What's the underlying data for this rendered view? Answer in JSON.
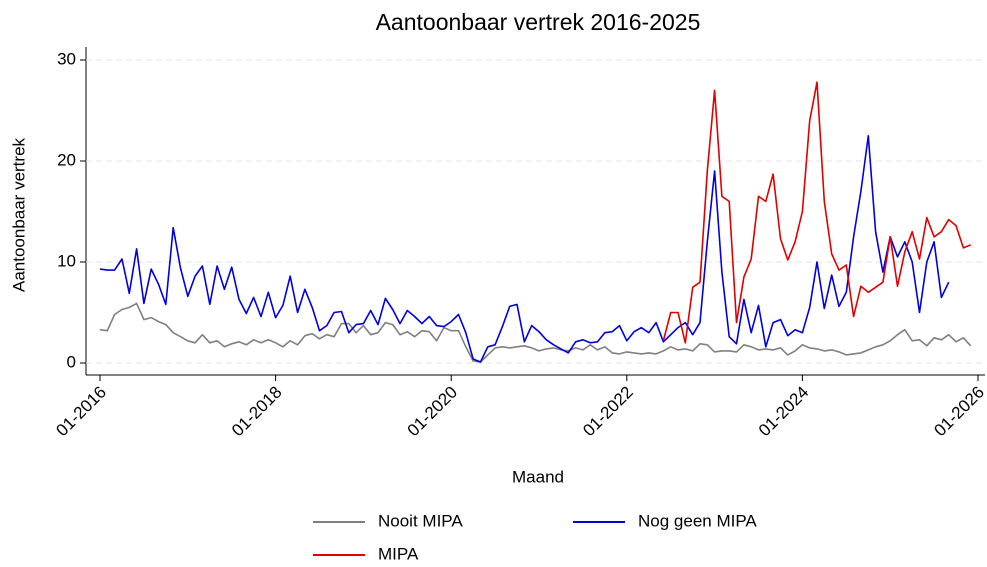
{
  "chart_data": {
    "type": "line",
    "title": "Aantoonbaar vertrek 2016-2025",
    "x_label": "Maand",
    "y_label": "Aantoonbaar vertrek",
    "x": [
      "01-2016",
      "02-2016",
      "03-2016",
      "04-2016",
      "05-2016",
      "06-2016",
      "07-2016",
      "08-2016",
      "09-2016",
      "10-2016",
      "11-2016",
      "12-2016",
      "01-2017",
      "02-2017",
      "03-2017",
      "04-2017",
      "05-2017",
      "06-2017",
      "07-2017",
      "08-2017",
      "09-2017",
      "10-2017",
      "11-2017",
      "12-2017",
      "01-2018",
      "02-2018",
      "03-2018",
      "04-2018",
      "05-2018",
      "06-2018",
      "07-2018",
      "08-2018",
      "09-2018",
      "10-2018",
      "11-2018",
      "12-2018",
      "01-2019",
      "02-2019",
      "03-2019",
      "04-2019",
      "05-2019",
      "06-2019",
      "07-2019",
      "08-2019",
      "09-2019",
      "10-2019",
      "11-2019",
      "12-2019",
      "01-2020",
      "02-2020",
      "03-2020",
      "04-2020",
      "05-2020",
      "06-2020",
      "07-2020",
      "08-2020",
      "09-2020",
      "10-2020",
      "11-2020",
      "12-2020",
      "01-2021",
      "02-2021",
      "03-2021",
      "04-2021",
      "05-2021",
      "06-2021",
      "07-2021",
      "08-2021",
      "09-2021",
      "10-2021",
      "11-2021",
      "12-2021",
      "01-2022",
      "02-2022",
      "03-2022",
      "04-2022",
      "05-2022",
      "06-2022",
      "07-2022",
      "08-2022",
      "09-2022",
      "10-2022",
      "11-2022",
      "12-2022",
      "01-2023",
      "02-2023",
      "03-2023",
      "04-2023",
      "05-2023",
      "06-2023",
      "07-2023",
      "08-2023",
      "09-2023",
      "10-2023",
      "11-2023",
      "12-2023",
      "01-2024",
      "02-2024",
      "03-2024",
      "04-2024",
      "05-2024",
      "06-2024",
      "07-2024",
      "08-2024",
      "09-2024",
      "10-2024",
      "11-2024",
      "12-2024",
      "01-2025",
      "02-2025",
      "03-2025",
      "04-2025",
      "05-2025",
      "06-2025",
      "07-2025",
      "08-2025",
      "09-2025",
      "10-2025",
      "11-2025",
      "12-2025"
    ],
    "series": [
      {
        "name": "Nooit MIPA",
        "color": "#808080",
        "values": [
          3.3,
          3.2,
          4.8,
          5.3,
          5.5,
          5.9,
          4.3,
          4.5,
          4.1,
          3.8,
          3.0,
          2.6,
          2.2,
          2.0,
          2.8,
          2.0,
          2.2,
          1.6,
          1.9,
          2.1,
          1.8,
          2.3,
          2.0,
          2.3,
          2.0,
          1.6,
          2.2,
          1.8,
          2.7,
          2.9,
          2.4,
          2.8,
          2.6,
          3.9,
          3.9,
          3.0,
          3.7,
          2.8,
          3.0,
          4.0,
          3.8,
          2.8,
          3.1,
          2.6,
          3.2,
          3.1,
          2.2,
          3.5,
          3.2,
          3.2,
          1.6,
          0.2,
          0.1,
          0.8,
          1.5,
          1.6,
          1.5,
          1.6,
          1.7,
          1.5,
          1.2,
          1.4,
          1.5,
          1.3,
          1.2,
          1.5,
          1.3,
          1.8,
          1.3,
          1.6,
          1.0,
          0.9,
          1.1,
          1.0,
          0.9,
          1.0,
          0.9,
          1.2,
          1.6,
          1.3,
          1.4,
          1.2,
          1.9,
          1.8,
          1.1,
          1.2,
          1.2,
          1.1,
          1.8,
          1.6,
          1.3,
          1.4,
          1.3,
          1.5,
          0.8,
          1.2,
          1.8,
          1.5,
          1.4,
          1.2,
          1.3,
          1.1,
          0.8,
          0.9,
          1.0,
          1.3,
          1.6,
          1.8,
          2.2,
          2.8,
          3.3,
          2.2,
          2.3,
          1.7,
          2.5,
          2.3,
          2.8,
          2.1,
          2.5,
          1.7
        ]
      },
      {
        "name": "Nog geen MIPA",
        "color": "#0000e0",
        "values": [
          9.3,
          9.2,
          9.2,
          10.3,
          6.9,
          11.3,
          5.9,
          9.3,
          7.8,
          5.8,
          13.4,
          9.4,
          6.6,
          8.6,
          9.6,
          5.8,
          9.6,
          7.3,
          9.5,
          6.3,
          4.9,
          6.5,
          4.6,
          7.0,
          4.5,
          5.7,
          8.6,
          5.0,
          7.3,
          5.5,
          3.2,
          3.7,
          5.0,
          5.1,
          3.0,
          3.8,
          3.9,
          5.2,
          3.8,
          6.4,
          5.3,
          3.9,
          5.2,
          4.6,
          3.9,
          4.6,
          3.7,
          3.6,
          4.1,
          4.8,
          3.0,
          0.4,
          0.1,
          1.6,
          1.8,
          3.6,
          5.6,
          5.8,
          2.1,
          3.7,
          3.1,
          2.3,
          1.8,
          1.4,
          1.0,
          2.1,
          2.3,
          2.0,
          2.1,
          3.0,
          3.1,
          3.7,
          2.2,
          3.1,
          3.5,
          3.0,
          4.0,
          2.1,
          2.8,
          3.5,
          4.0,
          2.8,
          4.0,
          12.0,
          19.0,
          9.0,
          2.6,
          1.9,
          6.3,
          3.0,
          5.7,
          1.6,
          4.0,
          4.3,
          2.7,
          3.3,
          3.0,
          5.5,
          10.0,
          5.4,
          8.7,
          5.6,
          7.0,
          12.5,
          17.0,
          22.5,
          13.0,
          9.0,
          12.5,
          10.5,
          12.0,
          10.0,
          5.0,
          10.0,
          12.0,
          6.5,
          8.0,
          null,
          null,
          null
        ]
      },
      {
        "name": "MIPA",
        "color": "#e00000",
        "values": [
          null,
          null,
          null,
          null,
          null,
          null,
          null,
          null,
          null,
          null,
          null,
          null,
          null,
          null,
          null,
          null,
          null,
          null,
          null,
          null,
          null,
          null,
          null,
          null,
          null,
          null,
          null,
          null,
          null,
          null,
          null,
          null,
          null,
          null,
          null,
          null,
          null,
          null,
          null,
          null,
          null,
          null,
          null,
          null,
          null,
          null,
          null,
          null,
          null,
          null,
          null,
          null,
          null,
          null,
          null,
          null,
          null,
          null,
          null,
          null,
          null,
          null,
          null,
          null,
          null,
          null,
          null,
          null,
          null,
          null,
          null,
          null,
          null,
          null,
          null,
          null,
          null,
          2.2,
          5.0,
          5.0,
          2.0,
          7.5,
          8.0,
          19.0,
          27.0,
          16.5,
          16.0,
          4.0,
          8.5,
          10.3,
          16.5,
          16.0,
          18.7,
          12.3,
          10.2,
          12.0,
          15.0,
          24.0,
          27.8,
          16.0,
          10.8,
          9.2,
          9.7,
          4.6,
          7.6,
          7.0,
          7.5,
          8.0,
          12.5,
          7.6,
          11.0,
          13.0,
          10.3,
          14.4,
          12.5,
          13.0,
          14.2,
          13.6,
          11.4,
          11.7
        ]
      }
    ],
    "xlim": [
      "01-2016",
      "01-2026"
    ],
    "xticks": [
      "01-2016",
      "01-2018",
      "01-2020",
      "01-2022",
      "01-2024",
      "01-2026"
    ],
    "ylim": [
      -1.2,
      31.3
    ],
    "yticks": [
      0,
      10,
      20,
      30
    ],
    "grid": true
  }
}
